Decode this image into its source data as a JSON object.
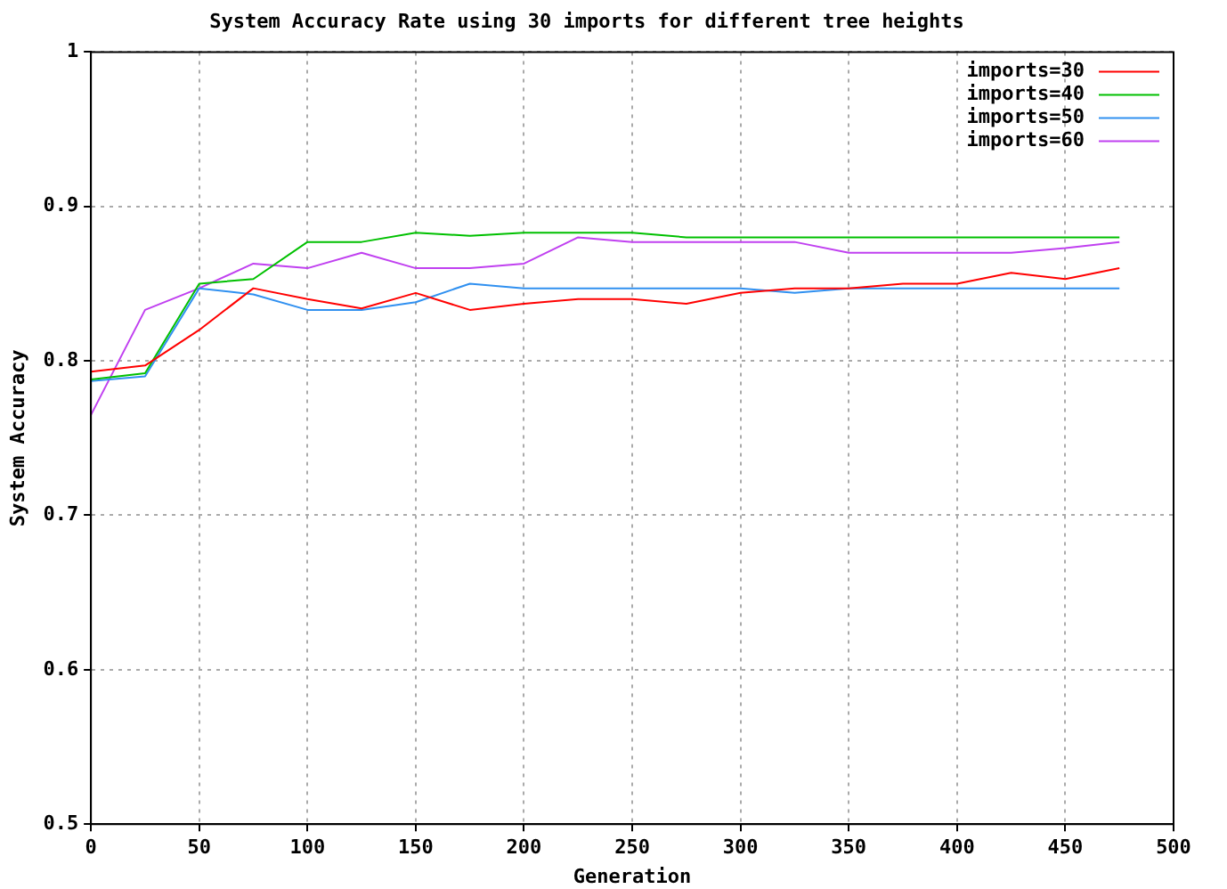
{
  "chart_data": {
    "type": "line",
    "title": "System Accuracy Rate using 30 imports for different tree heights",
    "xlabel": "Generation",
    "ylabel": "System Accuracy",
    "x": [
      0,
      25,
      50,
      75,
      100,
      125,
      150,
      175,
      200,
      225,
      250,
      275,
      300,
      325,
      350,
      375,
      400,
      425,
      450,
      475
    ],
    "series": [
      {
        "name": "imports=30",
        "color": "#ff0000",
        "values": [
          0.793,
          0.797,
          0.82,
          0.847,
          0.84,
          0.834,
          0.844,
          0.833,
          0.837,
          0.84,
          0.84,
          0.837,
          0.844,
          0.847,
          0.847,
          0.85,
          0.85,
          0.857,
          0.853,
          0.86
        ]
      },
      {
        "name": "imports=40",
        "color": "#00c000",
        "values": [
          0.788,
          0.792,
          0.85,
          0.853,
          0.877,
          0.877,
          0.883,
          0.881,
          0.883,
          0.883,
          0.883,
          0.88,
          0.88,
          0.88,
          0.88,
          0.88,
          0.88,
          0.88,
          0.88,
          0.88
        ]
      },
      {
        "name": "imports=50",
        "color": "#3090f0",
        "values": [
          0.787,
          0.79,
          0.847,
          0.843,
          0.833,
          0.833,
          0.838,
          0.85,
          0.847,
          0.847,
          0.847,
          0.847,
          0.847,
          0.844,
          0.847,
          0.847,
          0.847,
          0.847,
          0.847,
          0.847
        ]
      },
      {
        "name": "imports=60",
        "color": "#c040f0",
        "values": [
          0.765,
          0.833,
          0.847,
          0.863,
          0.86,
          0.87,
          0.86,
          0.86,
          0.863,
          0.88,
          0.877,
          0.877,
          0.877,
          0.877,
          0.87,
          0.87,
          0.87,
          0.87,
          0.873,
          0.877
        ]
      }
    ],
    "xlim": [
      0,
      500
    ],
    "xticks": [
      0,
      50,
      100,
      150,
      200,
      250,
      300,
      350,
      400,
      450,
      500
    ],
    "ylim": [
      0.5,
      1
    ],
    "yticks": [
      0.5,
      0.6,
      0.7,
      0.8,
      0.9,
      1
    ],
    "grid": true,
    "legend": "top right",
    "marker": "none",
    "line_style": "solid"
  }
}
